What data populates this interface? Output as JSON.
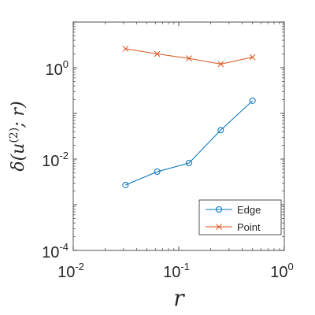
{
  "chart_data": {
    "type": "line",
    "x_scale": "log",
    "y_scale": "log",
    "xlim": [
      0.01,
      1
    ],
    "ylim": [
      0.0001,
      10
    ],
    "xlabel": "r",
    "ylabel": "δ(u^(2); r)",
    "x_ticks": [
      {
        "value": 0.01,
        "base": "10",
        "exp": "-2"
      },
      {
        "value": 0.1,
        "base": "10",
        "exp": "-1"
      },
      {
        "value": 1,
        "base": "10",
        "exp": "0"
      }
    ],
    "y_ticks": [
      {
        "value": 0.0001,
        "base": "10",
        "exp": "-4"
      },
      {
        "value": 0.01,
        "base": "10",
        "exp": "-2"
      },
      {
        "value": 1,
        "base": "10",
        "exp": "0"
      }
    ],
    "legend_position": "bottom-right",
    "series": [
      {
        "name": "Edge",
        "color": "#0072BD",
        "marker": "circle",
        "x": [
          0.03125,
          0.0625,
          0.125,
          0.25,
          0.5
        ],
        "y": [
          0.0027,
          0.0053,
          0.0082,
          0.043,
          0.19
        ]
      },
      {
        "name": "Point",
        "color": "#D95319",
        "marker": "x",
        "x": [
          0.03125,
          0.0625,
          0.125,
          0.25,
          0.5
        ],
        "y": [
          2.6,
          2.0,
          1.6,
          1.2,
          1.7
        ]
      }
    ]
  }
}
